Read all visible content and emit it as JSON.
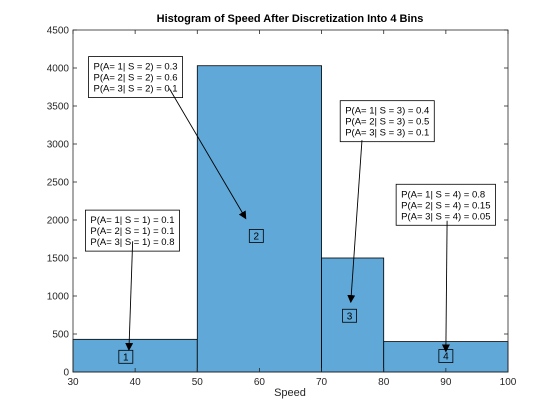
{
  "chart_data": {
    "type": "bar",
    "title": "Histogram of Speed After Discretization Into 4 Bins",
    "xlabel": "Speed",
    "ylabel": "",
    "xlim": [
      30,
      100
    ],
    "ylim": [
      0,
      4500
    ],
    "xticks": [
      30,
      40,
      50,
      60,
      70,
      80,
      90,
      100
    ],
    "yticks": [
      0,
      500,
      1000,
      1500,
      2000,
      2500,
      3000,
      3500,
      4000,
      4500
    ],
    "bar_color": "#5fa8d8",
    "bars": [
      {
        "x0": 30,
        "x1": 50,
        "value": 430
      },
      {
        "x0": 50,
        "x1": 70,
        "value": 4030
      },
      {
        "x0": 70,
        "x1": 80,
        "value": 1500
      },
      {
        "x0": 80,
        "x1": 100,
        "value": 400
      }
    ],
    "bin_labels": [
      {
        "text": "1",
        "x": 38.5,
        "y": 200
      },
      {
        "text": "2",
        "x": 59.5,
        "y": 1790
      },
      {
        "text": "3",
        "x": 74.5,
        "y": 740
      },
      {
        "text": "4",
        "x": 90,
        "y": 210
      }
    ],
    "annotations": [
      {
        "lines": [
          "P(A= 1| S = 1) = 0.1",
          "P(A= 2| S = 1) = 0.1",
          "P(A= 3| S = 1) = 0.8"
        ],
        "box_x": 32,
        "box_y": 2130,
        "arrow_from": [
          39.6,
          1720
        ],
        "arrow_to": [
          39,
          290
        ]
      },
      {
        "lines": [
          "P(A= 1| S = 2) = 0.3",
          "P(A= 2| S = 2) = 0.6",
          "P(A= 3| S = 2) = 0.1"
        ],
        "box_x": 32.5,
        "box_y": 4150,
        "arrow_from": [
          45.5,
          3730
        ],
        "arrow_to": [
          57.8,
          2020
        ]
      },
      {
        "lines": [
          "P(A= 1| S = 3) = 0.4",
          "P(A= 2| S = 3) = 0.5",
          "P(A= 3| S = 3) = 0.1"
        ],
        "box_x": 73,
        "box_y": 3570,
        "arrow_from": [
          76.5,
          3050
        ],
        "arrow_to": [
          74.7,
          920
        ]
      },
      {
        "lines": [
          "P(A= 1| S = 4) = 0.8",
          "P(A= 2| S = 4) = 0.15",
          "P(A= 3| S = 4) = 0.05"
        ],
        "box_x": 82,
        "box_y": 2470,
        "arrow_from": [
          90.2,
          1990
        ],
        "arrow_to": [
          90,
          270
        ]
      }
    ]
  }
}
